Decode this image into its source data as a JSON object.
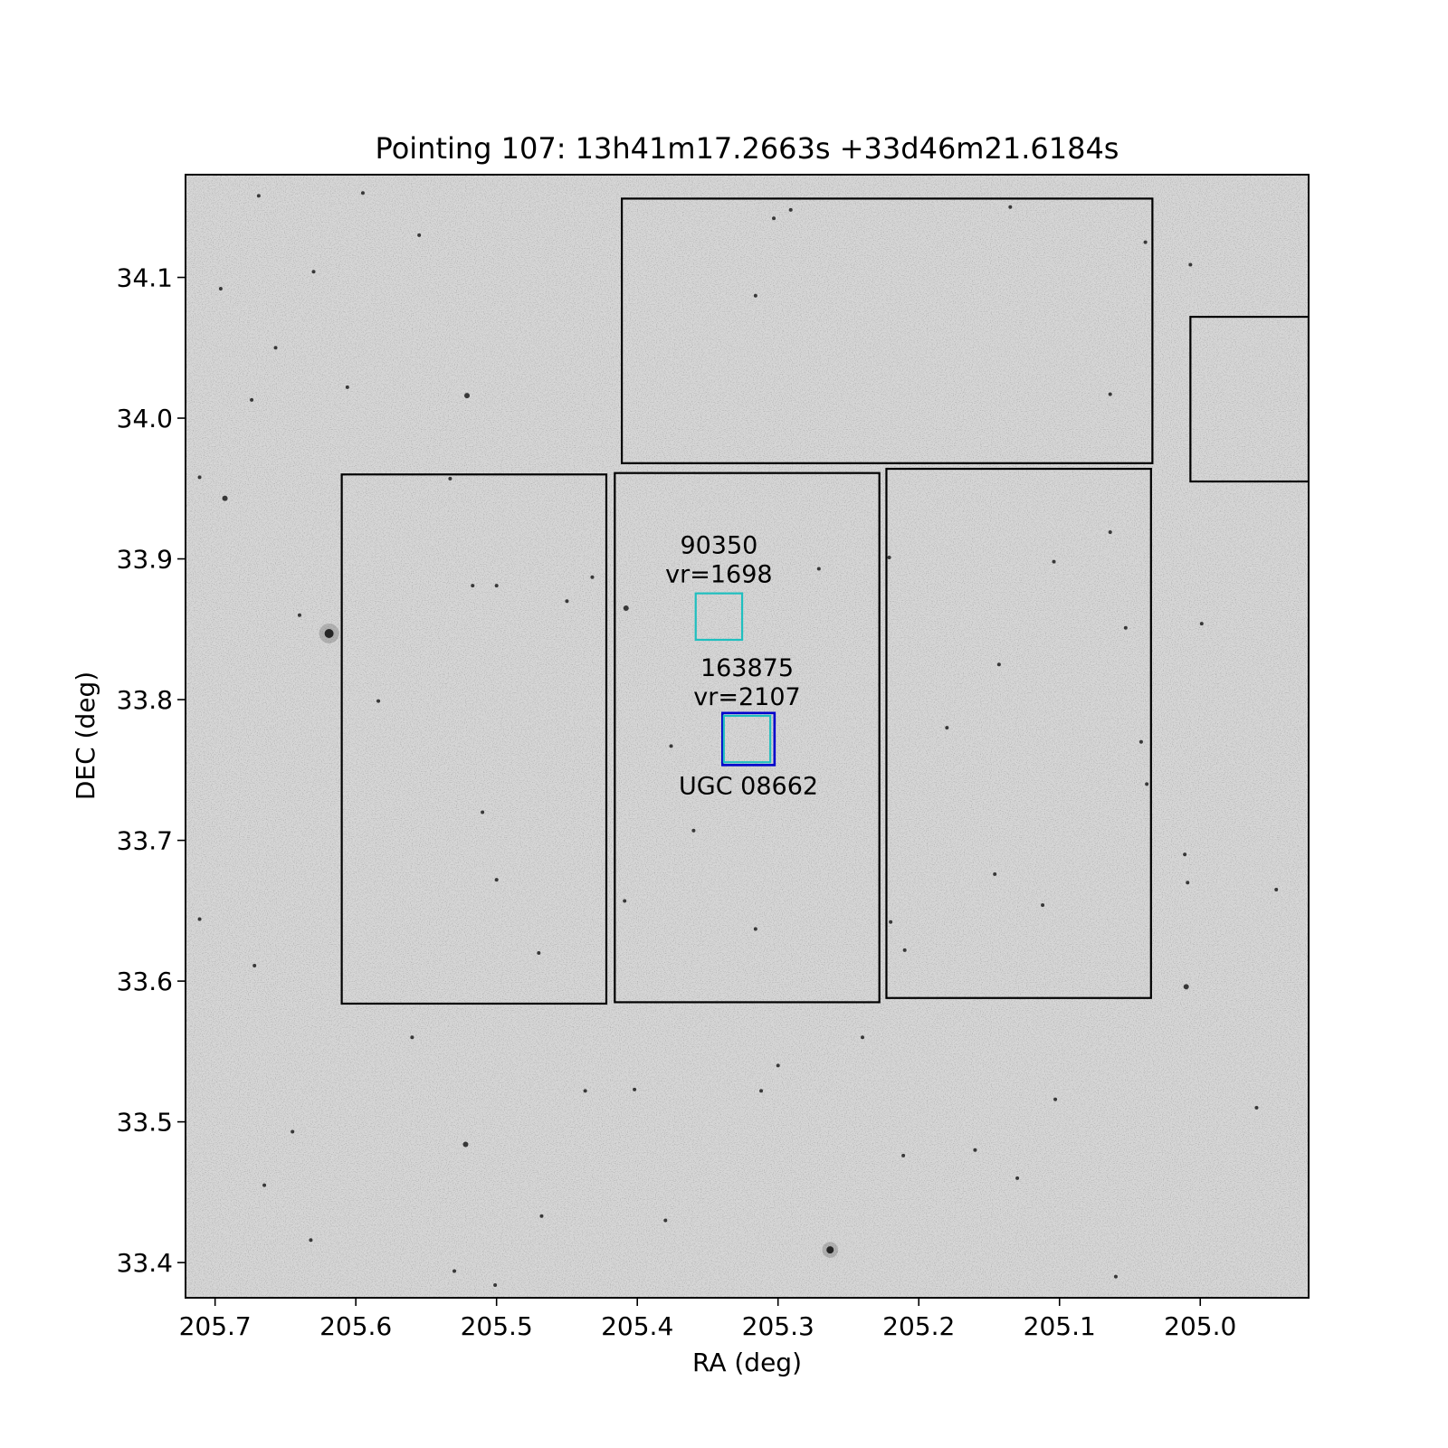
{
  "chart_data": {
    "type": "scatter",
    "title": "Pointing 107: 13h41m17.2663s +33d46m21.6184s",
    "xlabel": "RA (deg)",
    "ylabel": "DEC (deg)",
    "xlim": [
      205.721,
      204.923
    ],
    "ylim": [
      33.375,
      34.173
    ],
    "x_inverted": true,
    "grid": false,
    "legend": "none",
    "x_ticks": [
      205.7,
      205.6,
      205.5,
      205.4,
      205.3,
      205.2,
      205.1,
      205.0
    ],
    "x_tick_labels": [
      "205.7",
      "205.6",
      "205.5",
      "205.4",
      "205.3",
      "205.2",
      "205.1",
      "205.0"
    ],
    "y_ticks": [
      33.4,
      33.5,
      33.6,
      33.7,
      33.8,
      33.9,
      34.0,
      34.1
    ],
    "y_tick_labels": [
      "33.4",
      "33.5",
      "33.6",
      "33.7",
      "33.8",
      "33.9",
      "34.0",
      "34.1"
    ],
    "background": "greyscale sky image",
    "fields": [
      {
        "ra_min": 205.422,
        "ra_max": 205.61,
        "dec_min": 33.584,
        "dec_max": 33.96,
        "color": "#000000"
      },
      {
        "ra_min": 205.228,
        "ra_max": 205.416,
        "dec_min": 33.585,
        "dec_max": 33.961,
        "color": "#000000"
      },
      {
        "ra_min": 205.035,
        "ra_max": 205.223,
        "dec_min": 33.588,
        "dec_max": 33.964,
        "color": "#000000"
      },
      {
        "ra_min": 205.034,
        "ra_max": 205.411,
        "dec_min": 33.968,
        "dec_max": 34.156,
        "color": "#000000"
      },
      {
        "ra_min": 204.923,
        "ra_max": 205.007,
        "dec_min": 33.955,
        "dec_max": 34.072,
        "color": "#000000"
      }
    ],
    "sources": [
      {
        "id": "90350",
        "vr_label": "vr=1698",
        "ra": 205.342,
        "dec": 33.859,
        "half_size": 0.0165,
        "color": "#1fbfbf"
      },
      {
        "id": "163875",
        "vr_label": "vr=2107",
        "ra": 205.322,
        "dec": 33.772,
        "half_size": 0.0165,
        "color": "#1fbfbf"
      }
    ],
    "targets": [
      {
        "name": "UGC 08662",
        "ra": 205.321,
        "dec": 33.772,
        "half_size": 0.0185,
        "color": "#0000cc"
      }
    ],
    "stars": [
      [
        205.669,
        34.158,
        2
      ],
      [
        205.63,
        34.104,
        2
      ],
      [
        205.696,
        34.092,
        2
      ],
      [
        205.657,
        34.05,
        2
      ],
      [
        205.606,
        34.022,
        2
      ],
      [
        205.521,
        34.016,
        3
      ],
      [
        205.674,
        34.013,
        2
      ],
      [
        205.711,
        33.958,
        2
      ],
      [
        205.693,
        33.943,
        3
      ],
      [
        205.533,
        33.957,
        2
      ],
      [
        205.619,
        33.847,
        5
      ],
      [
        205.408,
        33.865,
        3
      ],
      [
        205.584,
        33.799,
        2
      ],
      [
        205.517,
        33.881,
        2
      ],
      [
        205.5,
        33.881,
        2
      ],
      [
        205.432,
        33.887,
        2
      ],
      [
        205.376,
        33.767,
        2
      ],
      [
        205.271,
        33.893,
        2
      ],
      [
        205.064,
        33.919,
        2
      ],
      [
        205.104,
        33.898,
        2
      ],
      [
        205.053,
        33.851,
        2
      ],
      [
        204.999,
        33.854,
        2
      ],
      [
        205.221,
        33.901,
        2
      ],
      [
        205.143,
        33.825,
        2
      ],
      [
        205.112,
        33.654,
        2
      ],
      [
        205.146,
        33.676,
        2
      ],
      [
        205.011,
        33.69,
        2
      ],
      [
        205.01,
        33.596,
        3
      ],
      [
        205.009,
        33.67,
        2
      ],
      [
        204.946,
        33.665,
        2
      ],
      [
        205.522,
        33.484,
        3
      ],
      [
        205.645,
        33.493,
        2
      ],
      [
        205.263,
        33.409,
        4
      ],
      [
        205.468,
        33.433,
        2
      ],
      [
        205.437,
        33.522,
        2
      ],
      [
        205.312,
        33.522,
        2
      ],
      [
        205.402,
        33.523,
        2
      ],
      [
        205.211,
        33.476,
        2
      ],
      [
        205.103,
        33.516,
        2
      ],
      [
        205.672,
        33.611,
        2
      ],
      [
        205.711,
        33.644,
        2
      ],
      [
        205.665,
        33.455,
        2
      ],
      [
        205.632,
        33.416,
        2
      ],
      [
        205.53,
        33.394,
        2
      ],
      [
        205.501,
        33.384,
        2
      ],
      [
        205.22,
        33.642,
        2
      ],
      [
        205.316,
        34.087,
        2
      ],
      [
        205.291,
        34.148,
        2
      ],
      [
        205.135,
        34.15,
        2
      ],
      [
        205.064,
        34.017,
        2
      ],
      [
        205.039,
        34.125,
        2
      ],
      [
        205.007,
        34.109,
        2
      ],
      [
        205.303,
        34.142,
        2
      ],
      [
        205.5,
        33.672,
        2
      ],
      [
        205.36,
        33.707,
        2
      ],
      [
        205.409,
        33.657,
        2
      ],
      [
        205.316,
        33.637,
        2
      ],
      [
        205.042,
        33.77,
        2
      ],
      [
        205.038,
        33.74,
        2
      ],
      [
        205.21,
        33.622,
        2
      ],
      [
        205.555,
        34.13,
        2
      ],
      [
        205.595,
        34.16,
        2
      ],
      [
        205.64,
        33.86,
        2
      ],
      [
        205.51,
        33.72,
        2
      ],
      [
        205.56,
        33.56,
        2
      ],
      [
        205.45,
        33.87,
        2
      ],
      [
        205.3,
        33.54,
        2
      ],
      [
        205.18,
        33.78,
        2
      ],
      [
        205.13,
        33.46,
        2
      ],
      [
        204.96,
        33.51,
        2
      ],
      [
        205.06,
        33.39,
        2
      ],
      [
        205.16,
        33.48,
        2
      ],
      [
        205.24,
        33.56,
        2
      ],
      [
        205.38,
        33.43,
        2
      ],
      [
        205.47,
        33.62,
        2
      ]
    ]
  }
}
